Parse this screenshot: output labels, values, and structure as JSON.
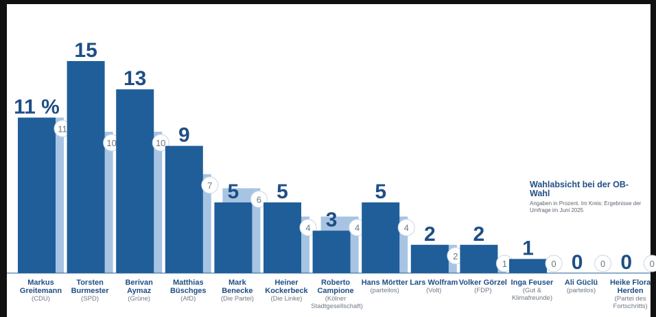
{
  "chart_data": {
    "type": "bar",
    "annotation": {
      "title": "Wahlabsicht bei der OB-Wahl",
      "subtitle": "Angaben in Prozent. Im Kreis: Ergebnisse der Umfrage im Juni 2025"
    },
    "first_label_suffix": " %",
    "series": [
      {
        "values": [
          11,
          15,
          13,
          9,
          5,
          5,
          3,
          5,
          2,
          2,
          1,
          0,
          0
        ]
      },
      {
        "values": [
          11,
          10,
          10,
          7,
          6,
          4,
          4,
          4,
          2,
          1,
          0,
          0,
          0
        ]
      }
    ],
    "categories": [
      {
        "name": "Markus Greitemann",
        "party": "(CDU)"
      },
      {
        "name": "Torsten Burmester",
        "party": "(SPD)"
      },
      {
        "name": "Berivan Aymaz",
        "party": "(Grüne)"
      },
      {
        "name": "Matthias Büschges",
        "party": "(AfD)"
      },
      {
        "name": "Mark Benecke",
        "party": "(Die Partei)"
      },
      {
        "name": "Heiner Kockerbeck",
        "party": "(Die Linke)"
      },
      {
        "name": "Roberto Campione",
        "party": "(Kölner Stadtgesellschaft)"
      },
      {
        "name": "Hans Mörtter",
        "party": "(parteilos)"
      },
      {
        "name": "Lars Wolfram",
        "party": "(Volt)"
      },
      {
        "name": "Volker Görzel",
        "party": "(FDP)"
      },
      {
        "name": "Inga Feuser",
        "party": "(Gut & Klimafreunde)"
      },
      {
        "name": "Ali Güclü",
        "party": "(parteilos)"
      },
      {
        "name": "Heike Flora Herden",
        "party": "(Partei des Fortschritts)"
      }
    ],
    "colors": {
      "current": "#1f5e99",
      "previous": "#a7c4e3",
      "value_label": "#1f4e85",
      "circle_text": "#6b7683"
    },
    "ylim": [
      0,
      15
    ]
  }
}
